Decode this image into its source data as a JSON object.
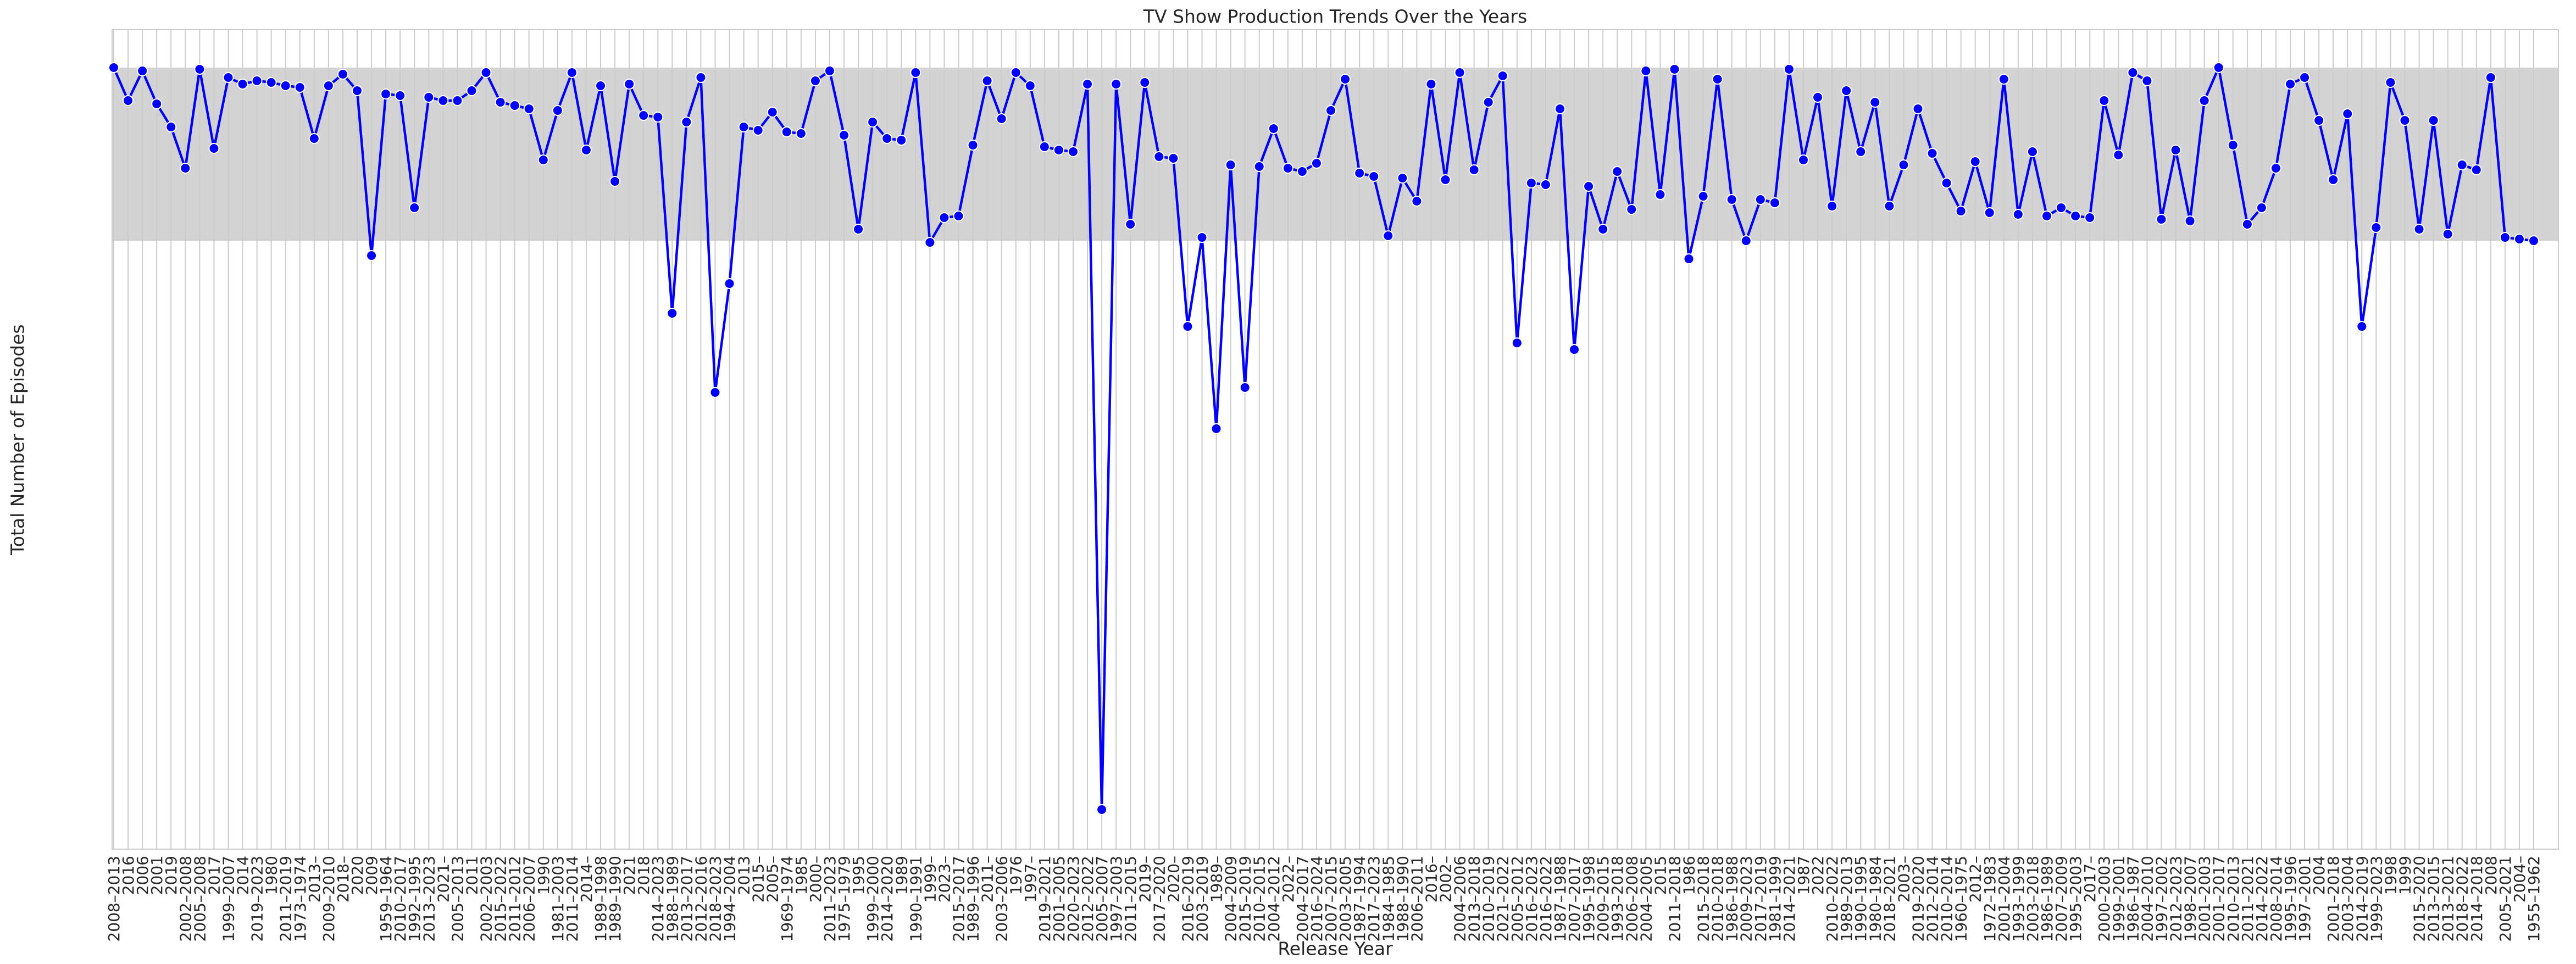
{
  "chart_data": {
    "type": "line",
    "title": "TV Show Production Trends Over the Years",
    "x_label": "Release Year",
    "y_label": "Total Number of Episodes",
    "color": "#0000ff",
    "grid": true,
    "ylim": [
      0,
      497
    ],
    "categories": [
      "2008–2013",
      "2016",
      "2006",
      "2001",
      "2019",
      "2002–2008",
      "2005–2008",
      "2017",
      "1999–2007",
      "2014",
      "2019–2023",
      "1980",
      "2011–2019",
      "1973–1974",
      "2013–",
      "2009–2010",
      "2018–",
      "2020",
      "2009",
      "1959–1964",
      "2010–2017",
      "1992–1995",
      "2013–2023",
      "2021–",
      "2005–2013",
      "2011",
      "2002–2003",
      "2015–2022",
      "2011–2012",
      "2006–2007",
      "1990",
      "1981–2003",
      "2011–2014",
      "2014–",
      "1989–1998",
      "1989–1990",
      "2021",
      "2018",
      "2014–2023",
      "1988–1989",
      "2013–2017",
      "2012–2016",
      "2018–2023",
      "1994–2004",
      "2013",
      "2015–",
      "2005–",
      "1969–1974",
      "1985",
      "2000–",
      "2011–2023",
      "1975–1979",
      "1995",
      "1999–2000",
      "2014–2020",
      "1989",
      "1990–1991",
      "1999–",
      "2023–",
      "2015–2017",
      "1989–1996",
      "2011–",
      "2003–2006",
      "1976",
      "1997–",
      "2019–2021",
      "2001–2005",
      "2020–2023",
      "2012–2022",
      "2005–2007",
      "1997–2003",
      "2011–2015",
      "2019–",
      "2017–2020",
      "2020–",
      "2016–2019",
      "2003–2019",
      "1989–",
      "2004–2009",
      "2015–2019",
      "2010–2015",
      "2004–2012",
      "2022–",
      "2004–2017",
      "2016–2024",
      "2007–2015",
      "2003–2005",
      "1987–1994",
      "2017–2023",
      "1984–1985",
      "1988–1990",
      "2006–2011",
      "2016–",
      "2002–",
      "2004–2006",
      "2013–2018",
      "2010–2019",
      "2021–2022",
      "2005–2012",
      "2016–2023",
      "2016–2022",
      "1987–1988",
      "2007–2017",
      "1995–1998",
      "2009–2015",
      "1993–2018",
      "2006–2008",
      "2004–2005",
      "2015",
      "2011–2018",
      "1986",
      "2015–2018",
      "2010–2018",
      "1986–1988",
      "2009–2023",
      "2017–2019",
      "1981–1999",
      "2014–2021",
      "1987",
      "2022",
      "2010–2022",
      "1989–2013",
      "1990–1995",
      "1980–1984",
      "2018–2021",
      "2003–",
      "2019–2020",
      "2012–2014",
      "2010–2014",
      "1960–1975",
      "2012–",
      "1972–1983",
      "2001–2004",
      "1993–1999",
      "2003–2018",
      "1986–1989",
      "2007–2009",
      "1995–2003",
      "2017–",
      "2000–2003",
      "1999–2001",
      "1986–1987",
      "2004–2010",
      "1997–2002",
      "2012–2023",
      "1998–2007",
      "2001–2003",
      "2001–2017",
      "2010–2013",
      "2011–2021",
      "2014–2022",
      "2008–2014",
      "1995–1996",
      "1997–2001",
      "2004",
      "2001–2018",
      "2003–2004",
      "2014–2019",
      "1999–2023",
      "1998",
      "1999",
      "2015–2020",
      "2013–2015",
      "2013–2021",
      "2018–2022",
      "2014–2018",
      "2008",
      "2005–2021",
      "2004–",
      "1955–1962"
    ],
    "values": [
      474,
      454,
      472,
      452,
      438,
      413,
      473,
      425,
      468,
      464,
      466,
      465,
      463,
      462,
      431,
      463,
      470,
      460,
      360,
      458,
      457,
      389,
      456,
      454,
      454,
      460,
      471,
      453,
      451,
      449,
      418,
      448,
      471,
      424,
      463,
      405,
      464,
      445,
      444,
      325,
      441,
      468,
      277,
      343,
      438,
      436,
      447,
      435,
      434,
      466,
      472,
      433,
      376,
      441,
      431,
      430,
      471,
      368,
      383,
      384,
      427,
      466,
      443,
      471,
      463,
      426,
      424,
      423,
      464,
      24,
      464,
      379,
      465,
      420,
      419,
      317,
      371,
      255,
      415,
      280,
      414,
      437,
      413,
      411,
      416,
      448,
      467,
      410,
      408,
      372,
      407,
      393,
      464,
      406,
      471,
      412,
      453,
      469,
      307,
      404,
      403,
      449,
      303,
      402,
      376,
      411,
      388,
      472,
      397,
      473,
      358,
      396,
      467,
      394,
      369,
      394,
      392,
      473,
      418,
      456,
      390,
      460,
      423,
      453,
      390,
      415,
      449,
      422,
      404,
      387,
      417,
      386,
      467,
      385,
      423,
      384,
      389,
      384,
      383,
      454,
      421,
      471,
      466,
      382,
      424,
      381,
      454,
      474,
      427,
      379,
      389,
      413,
      464,
      468,
      442,
      406,
      446,
      317,
      377,
      465,
      442,
      376,
      442,
      373,
      415,
      412,
      468,
      371,
      370,
      369
    ]
  }
}
